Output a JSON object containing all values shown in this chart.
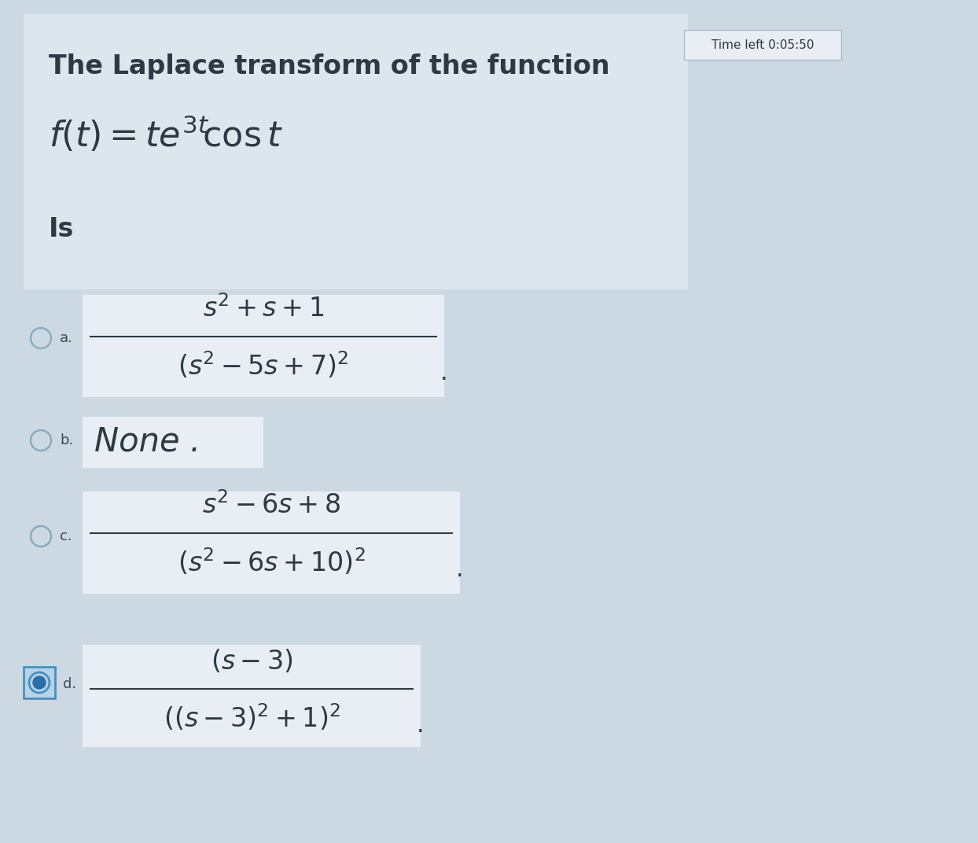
{
  "bg_color": "#cdd9e2",
  "panel_color": "#dce6ed",
  "white_box_color": "#e8eef3",
  "title_text": "The Laplace transform of the function",
  "timer_text": "Time left 0:05:50",
  "is_text": "Is",
  "option_a_label": "a.",
  "option_b_label": "b.",
  "option_b_text": "None .",
  "option_c_label": "c.",
  "option_d_label": "d.",
  "text_color": "#2d3a45",
  "label_color": "#3a4a58",
  "radio_edge": "#8aabbf",
  "selected_box_edge": "#4a8fc0",
  "selected_box_face": "#b8d3e8",
  "selected_dot": "#2a6fa8",
  "timer_edge": "#aabbcc",
  "timer_face": "#e8eef3",
  "fig_width": 12.44,
  "fig_height": 10.72,
  "dpi": 100
}
